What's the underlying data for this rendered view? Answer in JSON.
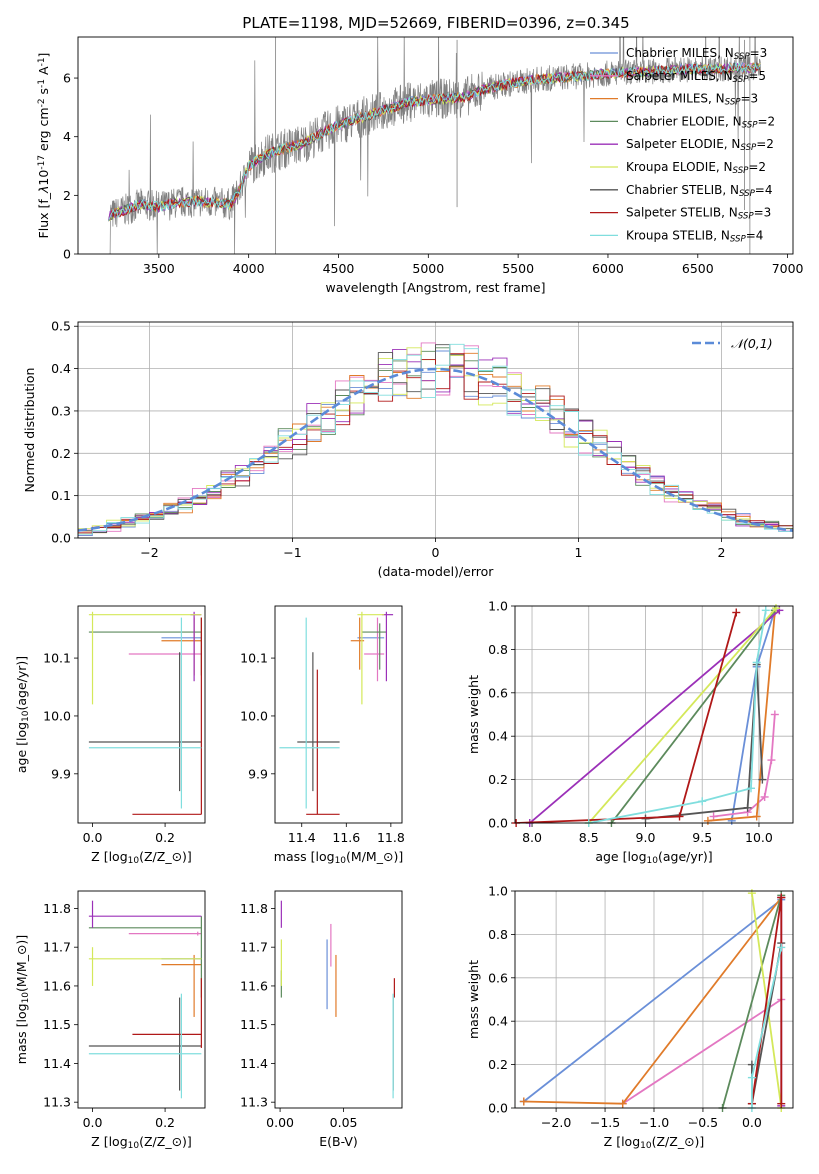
{
  "figure": {
    "title": "PLATE=1198, MJD=52669, FIBERID=0396, z=0.345"
  },
  "chart_data": [
    {
      "id": "spectrum",
      "type": "line",
      "xlabel": "wavelength [Angstrom, rest frame]",
      "ylabel": "Flux [f$_\\lambda$10$^{-17}$ erg cm$^{-2}$ s$^{-1}$ A$^{-1}$]",
      "xlim": [
        3050,
        7030
      ],
      "ylim": [
        0,
        7.4
      ],
      "xticks": [
        3500,
        4000,
        4500,
        5000,
        5500,
        6000,
        6500,
        7000
      ],
      "yticks": [
        0,
        2,
        4,
        6
      ],
      "data_x_range": [
        3220,
        6850
      ],
      "continuum": [
        [
          3220,
          1.3
        ],
        [
          3400,
          1.7
        ],
        [
          3500,
          1.6
        ],
        [
          3600,
          1.75
        ],
        [
          3700,
          1.8
        ],
        [
          3800,
          1.75
        ],
        [
          3900,
          1.7
        ],
        [
          3950,
          2.2
        ],
        [
          4000,
          3.0
        ],
        [
          4100,
          3.4
        ],
        [
          4200,
          3.6
        ],
        [
          4300,
          3.75
        ],
        [
          4400,
          4.1
        ],
        [
          4500,
          4.4
        ],
        [
          4600,
          4.6
        ],
        [
          4700,
          4.8
        ],
        [
          4800,
          5.0
        ],
        [
          4900,
          5.2
        ],
        [
          5000,
          5.25
        ],
        [
          5100,
          5.3
        ],
        [
          5200,
          5.35
        ],
        [
          5300,
          5.6
        ],
        [
          5400,
          5.75
        ],
        [
          5500,
          5.85
        ],
        [
          5600,
          5.95
        ],
        [
          5700,
          6.0
        ],
        [
          5800,
          6.05
        ],
        [
          5900,
          6.1
        ],
        [
          6000,
          6.15
        ],
        [
          6100,
          6.2
        ],
        [
          6200,
          6.2
        ],
        [
          6300,
          6.25
        ],
        [
          6400,
          6.3
        ],
        [
          6500,
          6.3
        ],
        [
          6600,
          6.3
        ],
        [
          6700,
          6.35
        ],
        [
          6850,
          6.35
        ]
      ],
      "legend_position": "upper right",
      "series": [
        {
          "name": "Chabrier MILES, N$_{SSP}$=3",
          "color": "#6a8fd8"
        },
        {
          "name": "Salpeter MILES, N$_{SSP}$=5",
          "color": "#e377c2"
        },
        {
          "name": "Kroupa MILES, N$_{SSP}$=3",
          "color": "#e07b2a"
        },
        {
          "name": "Chabrier ELODIE, N$_{SSP}$=2",
          "color": "#5c8a5c"
        },
        {
          "name": "Salpeter ELODIE, N$_{SSP}$=2",
          "color": "#9b30b8"
        },
        {
          "name": "Kroupa ELODIE, N$_{SSP}$=2",
          "color": "#d4e85a"
        },
        {
          "name": "Chabrier STELIB, N$_{SSP}$=4",
          "color": "#555555"
        },
        {
          "name": "Salpeter STELIB, N$_{SSP}$=3",
          "color": "#b01818"
        },
        {
          "name": "Kroupa STELIB, N$_{SSP}$=4",
          "color": "#80dede"
        }
      ],
      "data_color": "#808080"
    },
    {
      "id": "residuals",
      "type": "histogram",
      "xlabel": "(data-model)/error",
      "ylabel": "Normed distribution",
      "xlim": [
        -2.5,
        2.5
      ],
      "ylim": [
        0,
        0.51
      ],
      "xticks": [
        -2,
        -1,
        0,
        1,
        2
      ],
      "yticks": [
        0.0,
        0.1,
        0.2,
        0.3,
        0.4,
        0.5
      ],
      "grid": true,
      "bin_width": 0.1,
      "reference": {
        "name": "$\\mathcal{N}(0,1)$",
        "color": "#5b8bd8"
      },
      "legend_position": "upper right"
    },
    {
      "id": "z_age",
      "type": "errorbar",
      "xlabel": "Z [log$_{10}$(Z/Z$_\\odot$)]",
      "ylabel": "age  [log$_{10}$(age/yr)]",
      "xlim": [
        -0.04,
        0.31
      ],
      "ylim": [
        9.815,
        10.19
      ],
      "xticks": [
        0.0,
        0.2
      ],
      "yticks": [
        9.9,
        10.0,
        10.1
      ],
      "points": [
        {
          "c": "#6a8fd8",
          "x": 0.23,
          "xl": 0.19,
          "xh": 0.3,
          "y": 10.135,
          "yl": 10.135,
          "yh": 10.135
        },
        {
          "c": "#e377c2",
          "x": 0.29,
          "xl": 0.1,
          "xh": 0.3,
          "y": 10.107,
          "yl": 10.107,
          "yh": 10.107
        },
        {
          "c": "#e07b2a",
          "x": 0.28,
          "xl": 0.19,
          "xh": 0.3,
          "y": 10.13,
          "yl": 10.07,
          "yh": 10.17
        },
        {
          "c": "#5c8a5c",
          "x": 0.3,
          "xl": -0.01,
          "xh": 0.3,
          "y": 10.145,
          "yl": 10.07,
          "yh": 10.17
        },
        {
          "c": "#9b30b8",
          "x": 0.28,
          "xl": 0.27,
          "xh": 0.3,
          "y": 10.175,
          "yl": 10.06,
          "yh": 10.18
        },
        {
          "c": "#d4e85a",
          "x": 0.0,
          "xl": -0.01,
          "xh": 0.3,
          "y": 10.175,
          "yl": 10.02,
          "yh": 10.18
        },
        {
          "c": "#555555",
          "x": 0.24,
          "xl": -0.01,
          "xh": 0.3,
          "y": 9.955,
          "yl": 9.87,
          "yh": 10.11
        },
        {
          "c": "#b01818",
          "x": 0.3,
          "xl": 0.11,
          "xh": 0.3,
          "y": 9.83,
          "yl": 9.83,
          "yh": 10.17
        },
        {
          "c": "#80dede",
          "x": 0.245,
          "xl": -0.01,
          "xh": 0.3,
          "y": 9.945,
          "yl": 9.84,
          "yh": 10.17
        }
      ]
    },
    {
      "id": "mass_age",
      "type": "errorbar",
      "xlabel": "mass [log$_{10}$(M/M$_\\odot$)]",
      "ylabel": "",
      "xlim": [
        11.28,
        11.85
      ],
      "ylim": [
        9.815,
        10.19
      ],
      "xticks": [
        11.4,
        11.6,
        11.8
      ],
      "yticks": [
        9.9,
        10.0,
        10.1
      ],
      "points": [
        {
          "c": "#6a8fd8",
          "x": 11.72,
          "xl": 11.65,
          "xh": 11.77,
          "y": 10.135,
          "yl": 10.135,
          "yh": 10.135
        },
        {
          "c": "#e377c2",
          "x": 11.74,
          "xl": 11.68,
          "xh": 11.77,
          "y": 10.107,
          "yl": 10.06,
          "yh": 10.17
        },
        {
          "c": "#e07b2a",
          "x": 11.66,
          "xl": 11.62,
          "xh": 11.68,
          "y": 10.13,
          "yl": 10.08,
          "yh": 10.17
        },
        {
          "c": "#5c8a5c",
          "x": 11.75,
          "xl": 11.67,
          "xh": 11.78,
          "y": 10.145,
          "yl": 10.08,
          "yh": 10.16
        },
        {
          "c": "#9b30b8",
          "x": 11.78,
          "xl": 11.76,
          "xh": 11.81,
          "y": 10.175,
          "yl": 10.06,
          "yh": 10.18
        },
        {
          "c": "#d4e85a",
          "x": 11.67,
          "xl": 11.65,
          "xh": 11.77,
          "y": 10.175,
          "yl": 10.02,
          "yh": 10.18
        },
        {
          "c": "#555555",
          "x": 11.45,
          "xl": 11.38,
          "xh": 11.57,
          "y": 9.955,
          "yl": 9.87,
          "yh": 10.11
        },
        {
          "c": "#b01818",
          "x": 11.47,
          "xl": 11.42,
          "xh": 11.57,
          "y": 9.83,
          "yl": 9.83,
          "yh": 10.08
        },
        {
          "c": "#80dede",
          "x": 11.42,
          "xl": 11.3,
          "xh": 11.57,
          "y": 9.945,
          "yl": 9.84,
          "yh": 10.17
        }
      ]
    },
    {
      "id": "age_weight",
      "type": "line",
      "xlabel": "age  [log$_{10}$(age/yr)]",
      "ylabel": "mass weight",
      "xlim": [
        7.85,
        10.3
      ],
      "ylim": [
        0,
        1
      ],
      "xticks": [
        8.0,
        8.5,
        9.0,
        9.5,
        10.0
      ],
      "yticks": [
        0.0,
        0.2,
        0.4,
        0.6,
        0.8,
        1.0
      ],
      "grid": true,
      "series": [
        {
          "c": "#6a8fd8",
          "pts": [
            [
              9.76,
              0.01
            ],
            [
              9.98,
              0.72
            ],
            [
              10.14,
              0.98
            ]
          ]
        },
        {
          "c": "#e377c2",
          "pts": [
            [
              9.6,
              0.03
            ],
            [
              9.9,
              0.05
            ],
            [
              10.05,
              0.12
            ],
            [
              10.11,
              0.29
            ],
            [
              10.14,
              0.5
            ]
          ]
        },
        {
          "c": "#e07b2a",
          "pts": [
            [
              9.55,
              0.01
            ],
            [
              9.98,
              0.03
            ],
            [
              10.14,
              0.97
            ]
          ]
        },
        {
          "c": "#5c8a5c",
          "pts": [
            [
              8.7,
              0.0
            ],
            [
              10.14,
              0.98
            ]
          ]
        },
        {
          "c": "#9b30b8",
          "pts": [
            [
              7.98,
              0.0
            ],
            [
              10.18,
              0.98
            ]
          ]
        },
        {
          "c": "#d4e85a",
          "pts": [
            [
              8.5,
              0.0
            ],
            [
              10.15,
              0.99
            ]
          ]
        },
        {
          "c": "#555555",
          "pts": [
            [
              9.0,
              0.02
            ],
            [
              9.9,
              0.07
            ],
            [
              9.98,
              0.73
            ],
            [
              10.03,
              0.2
            ]
          ]
        },
        {
          "c": "#b01818",
          "pts": [
            [
              7.86,
              0.0
            ],
            [
              9.3,
              0.03
            ],
            [
              9.8,
              0.97
            ]
          ]
        },
        {
          "c": "#80dede",
          "pts": [
            [
              8.5,
              0.0
            ],
            [
              9.5,
              0.1
            ],
            [
              9.93,
              0.16
            ],
            [
              9.98,
              0.74
            ],
            [
              10.06,
              0.98
            ]
          ]
        }
      ]
    },
    {
      "id": "z_mass",
      "type": "errorbar",
      "xlabel": "Z [log$_{10}$(Z/Z$_\\odot$)]",
      "ylabel": "mass [log$_{10}$(M/M$_\\odot$)]",
      "xlim": [
        -0.04,
        0.31
      ],
      "ylim": [
        11.285,
        11.845
      ],
      "xticks": [
        0.0,
        0.2
      ],
      "yticks": [
        11.3,
        11.4,
        11.5,
        11.6,
        11.7,
        11.8
      ],
      "points": [
        {
          "c": "#6a8fd8",
          "x": 0.19,
          "xl": 0.19,
          "xh": 0.3,
          "y": 11.67,
          "yl": 11.67,
          "yh": 11.67
        },
        {
          "c": "#e377c2",
          "x": 0.29,
          "xl": 0.1,
          "xh": 0.3,
          "y": 11.735,
          "yl": 11.73,
          "yh": 11.74
        },
        {
          "c": "#e07b2a",
          "x": 0.28,
          "xl": 0.19,
          "xh": 0.3,
          "y": 11.655,
          "yl": 11.52,
          "yh": 11.68
        },
        {
          "c": "#5c8a5c",
          "x": 0.3,
          "xl": -0.01,
          "xh": 0.3,
          "y": 11.75,
          "yl": 11.57,
          "yh": 11.78
        },
        {
          "c": "#9b30b8",
          "x": 0.0,
          "xl": -0.01,
          "xh": 0.3,
          "y": 11.78,
          "yl": 11.75,
          "yh": 11.82
        },
        {
          "c": "#d4e85a",
          "x": 0.0,
          "xl": -0.01,
          "xh": 0.3,
          "y": 11.67,
          "yl": 11.6,
          "yh": 11.7
        },
        {
          "c": "#555555",
          "x": 0.24,
          "xl": -0.01,
          "xh": 0.3,
          "y": 11.445,
          "yl": 11.33,
          "yh": 11.57
        },
        {
          "c": "#b01818",
          "x": 0.3,
          "xl": 0.11,
          "xh": 0.3,
          "y": 11.475,
          "yl": 11.44,
          "yh": 11.62
        },
        {
          "c": "#80dede",
          "x": 0.245,
          "xl": -0.01,
          "xh": 0.3,
          "y": 11.425,
          "yl": 11.31,
          "yh": 11.58
        }
      ]
    },
    {
      "id": "ebv_mass",
      "type": "errorbar",
      "xlabel": "E(B-V)",
      "ylabel": "",
      "xlim": [
        -0.004,
        0.096
      ],
      "ylim": [
        11.285,
        11.845
      ],
      "xticks": [
        0.0,
        0.05
      ],
      "yticks": [
        11.3,
        11.4,
        11.5,
        11.6,
        11.7,
        11.8
      ],
      "points": [
        {
          "c": "#6a8fd8",
          "x": 0.037,
          "xl": 0.037,
          "xh": 0.037,
          "y": 11.62,
          "yl": 11.54,
          "yh": 11.72
        },
        {
          "c": "#e377c2",
          "x": 0.04,
          "xl": 0.04,
          "xh": 0.04,
          "y": 11.69,
          "yl": 11.65,
          "yh": 11.76
        },
        {
          "c": "#e07b2a",
          "x": 0.044,
          "xl": 0.044,
          "xh": 0.044,
          "y": 11.6,
          "yl": 11.52,
          "yh": 11.68
        },
        {
          "c": "#5c8a5c",
          "x": 0.001,
          "xl": 0.001,
          "xh": 0.001,
          "y": 11.6,
          "yl": 11.57,
          "yh": 11.64
        },
        {
          "c": "#9b30b8",
          "x": 0.001,
          "xl": 0.001,
          "xh": 0.001,
          "y": 11.78,
          "yl": 11.75,
          "yh": 11.82
        },
        {
          "c": "#d4e85a",
          "x": 0.001,
          "xl": 0.001,
          "xh": 0.001,
          "y": 11.67,
          "yl": 11.6,
          "yh": 11.72
        },
        {
          "c": "#555555",
          "x": 0.089,
          "xl": 0.089,
          "xh": 0.089,
          "y": 11.45,
          "yl": 11.33,
          "yh": 11.57
        },
        {
          "c": "#b01818",
          "x": 0.09,
          "xl": 0.09,
          "xh": 0.09,
          "y": 11.6,
          "yl": 11.57,
          "yh": 11.62
        },
        {
          "c": "#80dede",
          "x": 0.089,
          "xl": 0.089,
          "xh": 0.089,
          "y": 11.43,
          "yl": 11.31,
          "yh": 11.58
        }
      ]
    },
    {
      "id": "z_weight",
      "type": "line",
      "xlabel": "Z [log$_{10}$(Z/Z$_\\odot$)]",
      "ylabel": "mass weight",
      "xlim": [
        -2.42,
        0.42
      ],
      "ylim": [
        0,
        1
      ],
      "xticks": [
        -2.0,
        -1.5,
        -1.0,
        -0.5,
        0.0
      ],
      "yticks": [
        0.0,
        0.2,
        0.4,
        0.6,
        0.8,
        1.0
      ],
      "grid": true,
      "series": [
        {
          "c": "#6a8fd8",
          "pts": [
            [
              -2.33,
              0.03
            ],
            [
              0.3,
              0.96
            ]
          ]
        },
        {
          "c": "#e377c2",
          "pts": [
            [
              -1.32,
              0.02
            ],
            [
              0.3,
              0.5
            ]
          ]
        },
        {
          "c": "#e07b2a",
          "pts": [
            [
              -2.33,
              0.03
            ],
            [
              -1.32,
              0.02
            ],
            [
              0.3,
              0.97
            ]
          ]
        },
        {
          "c": "#5c8a5c",
          "pts": [
            [
              -0.3,
              0.0
            ],
            [
              0.3,
              0.98
            ]
          ]
        },
        {
          "c": "#9b30b8",
          "pts": [
            [
              0.3,
              0.01
            ],
            [
              0.3,
              0.97
            ]
          ]
        },
        {
          "c": "#d4e85a",
          "pts": [
            [
              0.0,
              0.99
            ],
            [
              0.3,
              0.0
            ]
          ]
        },
        {
          "c": "#555555",
          "pts": [
            [
              0.0,
              0.2
            ],
            [
              0.0,
              0.02
            ],
            [
              0.3,
              0.76
            ]
          ]
        },
        {
          "c": "#b01818",
          "pts": [
            [
              0.3,
              0.02
            ],
            [
              0.3,
              0.97
            ],
            [
              0.0,
              0.02
            ]
          ]
        },
        {
          "c": "#80dede",
          "pts": [
            [
              0.0,
              0.0
            ],
            [
              0.0,
              0.14
            ],
            [
              0.3,
              0.74
            ]
          ]
        }
      ]
    }
  ]
}
